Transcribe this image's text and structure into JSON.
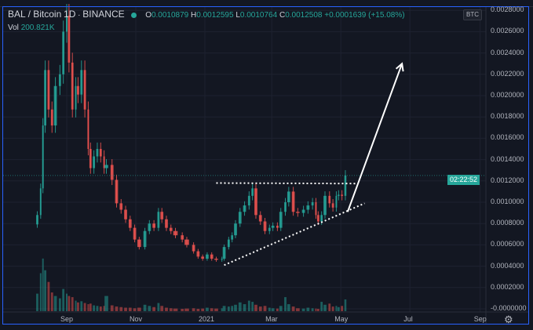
{
  "legend": {
    "symbol": "BAL / Bitcoin",
    "interval": "1D",
    "exchange": "BINANCE",
    "open_label": "O",
    "open": "0.0010879",
    "high_label": "H",
    "high": "0.0012595",
    "low_label": "L",
    "low": "0.0010764",
    "close_label": "C",
    "close": "0.0012508",
    "change": "+0.0001639 (+15.08%)",
    "vol_label": "Vol",
    "vol": "200.821K"
  },
  "axis": {
    "currency": "BTC",
    "countdown": "02:22:52",
    "settings_icon": "gear-icon"
  },
  "colors": {
    "background": "#131722",
    "up": "#26a69a",
    "down": "#ef5350",
    "grid": "#1e2230",
    "frame": "#2962ff"
  },
  "chart_data": {
    "type": "candlestick",
    "title": "",
    "ylim": [
      0,
      0.0028
    ],
    "yticks": [
      "0.0028000",
      "0.0026000",
      "0.0024000",
      "0.0022000",
      "0.0020000",
      "0.0018000",
      "0.0016000",
      "0.0014000",
      "0.0012000",
      "0.0010000",
      "0.0008000",
      "0.0006000",
      "0.0004000",
      "0.0002000",
      "-0.0000000"
    ],
    "ytick_values": [
      0.0028,
      0.0026,
      0.0024,
      0.0022,
      0.002,
      0.0018,
      0.0016,
      0.0014,
      0.0012,
      0.001,
      0.0008,
      0.0006,
      0.0004,
      0.0002,
      0
    ],
    "xticks": [
      {
        "label": "Sep",
        "date": "2020-09-01"
      },
      {
        "label": "Nov",
        "date": "2020-11-01"
      },
      {
        "label": "2021",
        "date": "2021-01-01"
      },
      {
        "label": "Mar",
        "date": "2021-03-01"
      },
      {
        "label": "May",
        "date": "2021-05-01"
      },
      {
        "label": "Jul",
        "date": "2021-07-01"
      },
      {
        "label": "Sep",
        "date": "2021-09-01"
      }
    ],
    "grid": true,
    "last_price": 0.0012508,
    "candles": [
      {
        "d": "2020-08-06",
        "c": 0.00088,
        "v": 300
      },
      {
        "d": "2020-08-09",
        "c": 0.00113,
        "v": 650
      },
      {
        "d": "2020-08-11",
        "c": 0.00172,
        "v": 900
      },
      {
        "d": "2020-08-13",
        "c": 0.00224,
        "v": 700
      },
      {
        "d": "2020-08-16",
        "c": 0.00187,
        "v": 500
      },
      {
        "d": "2020-08-19",
        "c": 0.00172,
        "v": 320
      },
      {
        "d": "2020-08-22",
        "c": 0.00209,
        "v": 260
      },
      {
        "d": "2020-08-26",
        "c": 0.0022,
        "v": 220
      },
      {
        "d": "2020-08-29",
        "c": 0.0026,
        "v": 380
      },
      {
        "d": "2020-09-01",
        "c": 0.00275,
        "v": 300
      },
      {
        "d": "2020-09-03",
        "c": 0.00231,
        "v": 260
      },
      {
        "d": "2020-09-06",
        "c": 0.00187,
        "v": 240
      },
      {
        "d": "2020-09-09",
        "c": 0.00209,
        "v": 180
      },
      {
        "d": "2020-09-11",
        "c": 0.00201,
        "v": 150
      },
      {
        "d": "2020-09-14",
        "c": 0.00224,
        "v": 170
      },
      {
        "d": "2020-09-17",
        "c": 0.00187,
        "v": 140
      },
      {
        "d": "2020-09-20",
        "c": 0.0015,
        "v": 120
      },
      {
        "d": "2020-09-22",
        "c": 0.00132,
        "v": 130
      },
      {
        "d": "2020-09-25",
        "c": 0.00143,
        "v": 100
      },
      {
        "d": "2020-09-28",
        "c": 0.0015,
        "v": 90
      },
      {
        "d": "2020-10-01",
        "c": 0.00143,
        "v": 80
      },
      {
        "d": "2020-10-04",
        "c": 0.00132,
        "v": 90
      },
      {
        "d": "2020-10-06",
        "c": 0.00135,
        "v": 260
      },
      {
        "d": "2020-10-11",
        "c": 0.00121,
        "v": 100
      },
      {
        "d": "2020-10-15",
        "c": 0.00099,
        "v": 80
      },
      {
        "d": "2020-10-19",
        "c": 0.00093,
        "v": 70
      },
      {
        "d": "2020-10-23",
        "c": 0.00084,
        "v": 60
      },
      {
        "d": "2020-10-27",
        "c": 0.00076,
        "v": 60
      },
      {
        "d": "2020-10-31",
        "c": 0.00065,
        "v": 50
      },
      {
        "d": "2020-11-04",
        "c": 0.00058,
        "v": 60
      },
      {
        "d": "2020-11-09",
        "c": 0.00073,
        "v": 110
      },
      {
        "d": "2020-11-13",
        "c": 0.0008,
        "v": 90
      },
      {
        "d": "2020-11-17",
        "c": 0.00076,
        "v": 70
      },
      {
        "d": "2020-11-21",
        "c": 0.00091,
        "v": 140
      },
      {
        "d": "2020-11-24",
        "c": 0.00084,
        "v": 90
      },
      {
        "d": "2020-11-28",
        "c": 0.00076,
        "v": 60
      },
      {
        "d": "2020-12-02",
        "c": 0.00073,
        "v": 50
      },
      {
        "d": "2020-12-06",
        "c": 0.00069,
        "v": 45
      },
      {
        "d": "2020-12-12",
        "c": 0.00065,
        "v": 40
      },
      {
        "d": "2020-12-16",
        "c": 0.0006,
        "v": 45
      },
      {
        "d": "2020-12-22",
        "c": 0.00054,
        "v": 50
      },
      {
        "d": "2020-12-26",
        "c": 0.00049,
        "v": 40
      },
      {
        "d": "2020-12-30",
        "c": 0.00047,
        "v": 45
      },
      {
        "d": "2021-01-03",
        "c": 0.00051,
        "v": 60
      },
      {
        "d": "2021-01-07",
        "c": 0.00047,
        "v": 50
      },
      {
        "d": "2021-01-11",
        "c": 0.00046,
        "v": 45
      },
      {
        "d": "2021-01-16",
        "c": 0.00047,
        "v": 50
      },
      {
        "d": "2021-01-18",
        "c": 0.00058,
        "v": 90
      },
      {
        "d": "2021-01-22",
        "c": 0.00065,
        "v": 80
      },
      {
        "d": "2021-01-25",
        "c": 0.00069,
        "v": 90
      },
      {
        "d": "2021-01-28",
        "c": 0.0008,
        "v": 110
      },
      {
        "d": "2021-02-01",
        "c": 0.00091,
        "v": 150
      },
      {
        "d": "2021-02-05",
        "c": 0.00097,
        "v": 120
      },
      {
        "d": "2021-02-09",
        "c": 0.00106,
        "v": 180
      },
      {
        "d": "2021-02-12",
        "c": 0.00113,
        "v": 160
      },
      {
        "d": "2021-02-15",
        "c": 0.00088,
        "v": 110
      },
      {
        "d": "2021-02-19",
        "c": 0.00082,
        "v": 80
      },
      {
        "d": "2021-02-23",
        "c": 0.00073,
        "v": 90
      },
      {
        "d": "2021-02-27",
        "c": 0.00076,
        "v": 60
      },
      {
        "d": "2021-03-02",
        "c": 0.00078,
        "v": 50
      },
      {
        "d": "2021-03-06",
        "c": 0.00076,
        "v": 45
      },
      {
        "d": "2021-03-09",
        "c": 0.00091,
        "v": 90
      },
      {
        "d": "2021-03-13",
        "c": 0.001,
        "v": 240
      },
      {
        "d": "2021-03-16",
        "c": 0.0011,
        "v": 120
      },
      {
        "d": "2021-03-20",
        "c": 0.00091,
        "v": 80
      },
      {
        "d": "2021-03-24",
        "c": 0.0009,
        "v": 50
      },
      {
        "d": "2021-03-29",
        "c": 0.00093,
        "v": 45
      },
      {
        "d": "2021-04-02",
        "c": 0.00097,
        "v": 60
      },
      {
        "d": "2021-04-06",
        "c": 0.001,
        "v": 50
      },
      {
        "d": "2021-04-09",
        "c": 0.00088,
        "v": 45
      },
      {
        "d": "2021-04-11",
        "c": 0.00082,
        "v": 40
      },
      {
        "d": "2021-04-14",
        "c": 0.00088,
        "v": 160
      },
      {
        "d": "2021-04-17",
        "c": 0.00106,
        "v": 110
      },
      {
        "d": "2021-04-21",
        "c": 0.00099,
        "v": 130
      },
      {
        "d": "2021-04-24",
        "c": 0.00095,
        "v": 80
      },
      {
        "d": "2021-04-27",
        "c": 0.00106,
        "v": 90
      },
      {
        "d": "2021-04-29",
        "c": 0.00107,
        "v": 70
      },
      {
        "d": "2021-05-02",
        "c": 0.00106,
        "v": 90
      },
      {
        "d": "2021-05-05",
        "c": 0.0012508,
        "v": 200.821
      }
    ],
    "drawings": [
      {
        "kind": "dotted-line",
        "from": {
          "d": "2021-01-11",
          "p": 0.00118
        },
        "to": {
          "d": "2021-05-16",
          "p": 0.001175
        }
      },
      {
        "kind": "dotted-line",
        "from": {
          "d": "2021-01-18",
          "p": 0.00041
        },
        "to": {
          "d": "2021-05-22",
          "p": 0.00099
        }
      },
      {
        "kind": "arrow",
        "from": {
          "d": "2021-05-07",
          "p": 0.00091
        },
        "to": {
          "d": "2021-06-24",
          "p": 0.0023
        }
      }
    ]
  }
}
